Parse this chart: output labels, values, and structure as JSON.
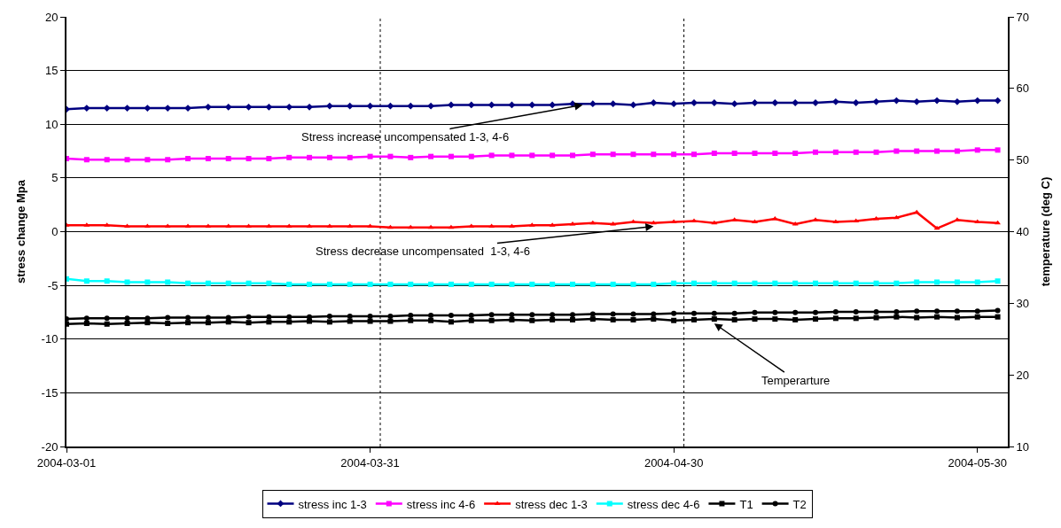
{
  "chart_data": {
    "type": "line",
    "ylabel": "stress change Mpa",
    "y2label": "temperature (deg C)",
    "x": [
      "2004-03-01",
      "2004-03-03",
      "2004-03-05",
      "2004-03-07",
      "2004-03-09",
      "2004-03-11",
      "2004-03-13",
      "2004-03-15",
      "2004-03-17",
      "2004-03-19",
      "2004-03-21",
      "2004-03-23",
      "2004-03-25",
      "2004-03-27",
      "2004-03-29",
      "2004-03-31",
      "2004-04-02",
      "2004-04-04",
      "2004-04-06",
      "2004-04-08",
      "2004-04-10",
      "2004-04-12",
      "2004-04-14",
      "2004-04-16",
      "2004-04-18",
      "2004-04-20",
      "2004-04-22",
      "2004-04-24",
      "2004-04-26",
      "2004-04-28",
      "2004-04-30",
      "2004-05-02",
      "2004-05-04",
      "2004-05-06",
      "2004-05-08",
      "2004-05-10",
      "2004-05-12",
      "2004-05-14",
      "2004-05-16",
      "2004-05-18",
      "2004-05-20",
      "2004-05-22",
      "2004-05-24",
      "2004-05-26",
      "2004-05-28",
      "2004-05-30",
      "2004-06-01"
    ],
    "series": [
      {
        "name": "stress inc 1-3",
        "color": "#000080",
        "marker": "diamond",
        "values": [
          11.4,
          11.5,
          11.5,
          11.5,
          11.5,
          11.5,
          11.5,
          11.6,
          11.6,
          11.6,
          11.6,
          11.6,
          11.6,
          11.7,
          11.7,
          11.7,
          11.7,
          11.7,
          11.7,
          11.8,
          11.8,
          11.8,
          11.8,
          11.8,
          11.8,
          11.9,
          11.9,
          11.9,
          11.8,
          12.0,
          11.9,
          12.0,
          12.0,
          11.9,
          12.0,
          12.0,
          12.0,
          12.0,
          12.1,
          12.0,
          12.1,
          12.2,
          12.1,
          12.2,
          12.1,
          12.2,
          12.2
        ]
      },
      {
        "name": "stress inc 4-6",
        "color": "#ff00ff",
        "marker": "square",
        "values": [
          6.8,
          6.7,
          6.7,
          6.7,
          6.7,
          6.7,
          6.8,
          6.8,
          6.8,
          6.8,
          6.8,
          6.9,
          6.9,
          6.9,
          6.9,
          7.0,
          7.0,
          6.9,
          7.0,
          7.0,
          7.0,
          7.1,
          7.1,
          7.1,
          7.1,
          7.1,
          7.2,
          7.2,
          7.2,
          7.2,
          7.2,
          7.2,
          7.3,
          7.3,
          7.3,
          7.3,
          7.3,
          7.4,
          7.4,
          7.4,
          7.4,
          7.5,
          7.5,
          7.5,
          7.5,
          7.6,
          7.6
        ]
      },
      {
        "name": "stress dec 1-3",
        "color": "#ff0000",
        "marker": "triangle",
        "values": [
          0.6,
          0.6,
          0.6,
          0.5,
          0.5,
          0.5,
          0.5,
          0.5,
          0.5,
          0.5,
          0.5,
          0.5,
          0.5,
          0.5,
          0.5,
          0.5,
          0.4,
          0.4,
          0.4,
          0.4,
          0.5,
          0.5,
          0.5,
          0.6,
          0.6,
          0.7,
          0.8,
          0.7,
          0.9,
          0.8,
          0.9,
          1.0,
          0.8,
          1.1,
          0.9,
          1.2,
          0.7,
          1.1,
          0.9,
          1.0,
          1.2,
          1.3,
          1.8,
          0.3,
          1.1,
          0.9,
          0.8
        ]
      },
      {
        "name": "stress dec 4-6",
        "color": "#00ffff",
        "marker": "square",
        "values": [
          -4.4,
          -4.6,
          -4.6,
          -4.7,
          -4.7,
          -4.7,
          -4.8,
          -4.8,
          -4.8,
          -4.8,
          -4.8,
          -4.9,
          -4.9,
          -4.9,
          -4.9,
          -4.9,
          -4.9,
          -4.9,
          -4.9,
          -4.9,
          -4.9,
          -4.9,
          -4.9,
          -4.9,
          -4.9,
          -4.9,
          -4.9,
          -4.9,
          -4.9,
          -4.9,
          -4.8,
          -4.8,
          -4.8,
          -4.8,
          -4.8,
          -4.8,
          -4.8,
          -4.8,
          -4.8,
          -4.8,
          -4.8,
          -4.8,
          -4.7,
          -4.7,
          -4.7,
          -4.7,
          -4.6
        ]
      },
      {
        "name": "T1",
        "color": "#000000",
        "marker": "square",
        "axis": "y2",
        "values": [
          27.1,
          27.2,
          27.1,
          27.2,
          27.3,
          27.2,
          27.3,
          27.3,
          27.4,
          27.3,
          27.4,
          27.4,
          27.5,
          27.4,
          27.5,
          27.5,
          27.5,
          27.6,
          27.6,
          27.4,
          27.6,
          27.6,
          27.7,
          27.6,
          27.7,
          27.7,
          27.8,
          27.7,
          27.7,
          27.8,
          27.6,
          27.7,
          27.8,
          27.7,
          27.8,
          27.8,
          27.7,
          27.8,
          27.9,
          27.9,
          28.0,
          28.1,
          28.0,
          28.1,
          28.0,
          28.1,
          28.1
        ]
      },
      {
        "name": "T2",
        "color": "#000000",
        "marker": "circle",
        "axis": "y2",
        "values": [
          27.8,
          27.9,
          27.9,
          27.9,
          27.9,
          28.0,
          28.0,
          28.0,
          28.0,
          28.1,
          28.1,
          28.1,
          28.1,
          28.2,
          28.2,
          28.2,
          28.2,
          28.3,
          28.3,
          28.3,
          28.3,
          28.4,
          28.4,
          28.4,
          28.4,
          28.4,
          28.5,
          28.5,
          28.5,
          28.5,
          28.6,
          28.6,
          28.6,
          28.6,
          28.7,
          28.7,
          28.7,
          28.7,
          28.8,
          28.8,
          28.8,
          28.8,
          28.9,
          28.9,
          28.9,
          28.9,
          29.0
        ]
      }
    ],
    "xlim": [
      "2004-03-01",
      "2004-06-02"
    ],
    "xticks": [
      "2004-03-01",
      "2004-03-31",
      "2004-04-30",
      "2004-05-30"
    ],
    "ylim": [
      -20,
      20
    ],
    "yticks": [
      -20,
      -15,
      -10,
      -5,
      0,
      5,
      10,
      15,
      20
    ],
    "y2lim": [
      10,
      70
    ],
    "y2ticks": [
      10,
      20,
      30,
      40,
      50,
      60,
      70
    ],
    "grid": "y",
    "legend": "bottom",
    "line_style": "solid",
    "ref_lines": [
      {
        "axis": "x",
        "value": "2004-04-01",
        "color": "#000000",
        "line_style": "dotted"
      },
      {
        "axis": "x",
        "value": "2004-05-01",
        "color": "#000000",
        "line_style": "dotted"
      }
    ],
    "annotations": [
      {
        "text": "Stress increase uncompensated 1-3, 4-6",
        "x": "2004-04-21",
        "y": 11.8
      },
      {
        "text": "Stress decrease uncompensated  1-3, 4-6",
        "x": "2004-04-28",
        "y": 0.5
      },
      {
        "text": "Temperarture",
        "x": "2004-05-04",
        "y": -8.55
      }
    ]
  }
}
